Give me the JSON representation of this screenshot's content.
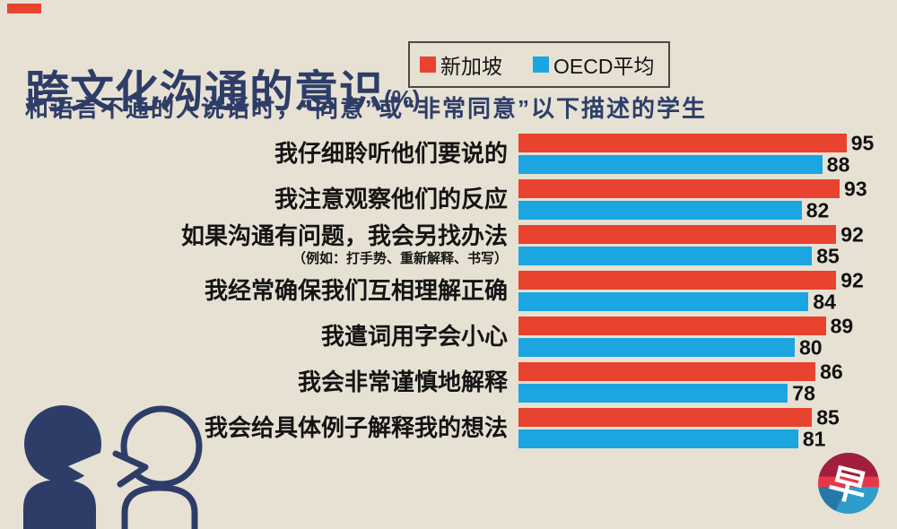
{
  "colors": {
    "background": "#e6e1d3",
    "navy": "#2e3d68",
    "singapore_red": "#e8432f",
    "oecd_blue": "#1ba6e2",
    "value_text": "#111111",
    "logo_crimson": "#a11e3d",
    "logo_red": "#e9374a",
    "logo_blue_dark": "#2679a6",
    "logo_blue_light": "#2f9dca"
  },
  "header": {
    "title": "跨文化沟通的意识",
    "unit": "(%)",
    "subtitle": "和语言不通的人说话时，“同意”或“非常同意”以下描述的学生"
  },
  "legend": {
    "items": [
      {
        "label": "新加坡",
        "color": "#e8432f"
      },
      {
        "label": "OECD平均",
        "color": "#1ba6e2"
      }
    ]
  },
  "chart_data": {
    "type": "bar",
    "orientation": "horizontal",
    "unit": "%",
    "xlim": [
      0,
      100
    ],
    "grid": false,
    "legend_position": "top-right",
    "categories": [
      "我仔细聆听他们要说的",
      "我注意观察他们的反应",
      "如果沟通有问题，我会另找办法",
      "我经常确保我们互相理解正确",
      "我遣词用字会小心",
      "我会非常谨慎地解释",
      "我会给具体例子解释我的想法"
    ],
    "notes": [
      "",
      "",
      "（例如：打手势、重新解释、书写）",
      "",
      "",
      "",
      ""
    ],
    "series": [
      {
        "name": "新加坡",
        "color": "#e8432f",
        "values": [
          95,
          93,
          92,
          92,
          89,
          86,
          85
        ]
      },
      {
        "name": "OECD平均",
        "color": "#1ba6e2",
        "values": [
          88,
          82,
          85,
          84,
          80,
          78,
          81
        ]
      }
    ]
  },
  "footer": {
    "logo_char": "早"
  }
}
